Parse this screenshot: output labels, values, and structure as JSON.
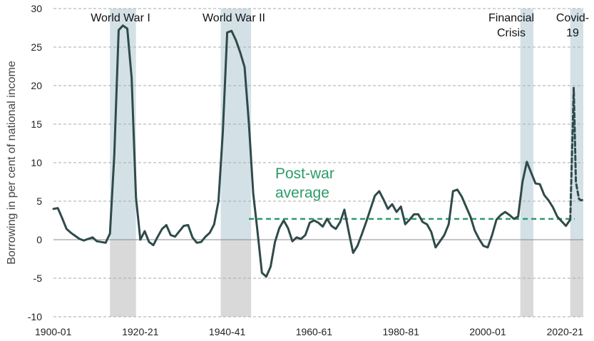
{
  "chart_data": {
    "type": "line",
    "ylabel": "Borrowing in per cent of national income",
    "ylim": [
      -10,
      30
    ],
    "yticks": [
      -10,
      -5,
      0,
      5,
      10,
      15,
      20,
      25,
      30
    ],
    "ytick_labels": [
      "-10",
      "-5",
      "0",
      "5",
      "10",
      "15",
      "20",
      "25",
      "30"
    ],
    "xlim": [
      1900,
      2022
    ],
    "xticks": [
      1900,
      1920,
      1940,
      1960,
      1980,
      2000,
      2020
    ],
    "xtick_labels": [
      "1900-01",
      "1920-21",
      "1940-41",
      "1960-61",
      "1980-81",
      "2000-01",
      "2020-21"
    ],
    "grid": true,
    "colors": {
      "line": "#2f4a49",
      "average": "#2e9a6a",
      "shade_positive": "#d3e1e7",
      "shade_negative": "#d9d9d9",
      "grid": "#aaaaaa"
    },
    "shaded_periods": [
      {
        "label_lines": [
          "World War I"
        ],
        "start": 1913,
        "end": 1919
      },
      {
        "label_lines": [
          "World War II"
        ],
        "start": 1938.5,
        "end": 1945.5
      },
      {
        "label_lines": [
          "Financial",
          "Crisis"
        ],
        "start": 2007.5,
        "end": 2010.5
      },
      {
        "label_lines": [
          "Covid-",
          "19"
        ],
        "start": 2019,
        "end": 2022
      }
    ],
    "average": {
      "label_lines": [
        "Post-war",
        "average"
      ],
      "value": 2.7,
      "start": 1945,
      "end": 2020
    },
    "series": [
      {
        "style": "solid",
        "x": [
          1900,
          1901,
          1902,
          1903,
          1904,
          1905,
          1906,
          1907,
          1908,
          1909,
          1910,
          1911,
          1912,
          1913,
          1914,
          1915,
          1916,
          1917,
          1918,
          1919,
          1920,
          1921,
          1922,
          1923,
          1924,
          1925,
          1926,
          1927,
          1928,
          1929,
          1930,
          1931,
          1932,
          1933,
          1934,
          1935,
          1936,
          1937,
          1938,
          1939,
          1940,
          1941,
          1942,
          1943,
          1944,
          1945,
          1946,
          1947,
          1948,
          1949,
          1950,
          1951,
          1952,
          1953,
          1954,
          1955,
          1956,
          1957,
          1958,
          1959,
          1960,
          1961,
          1962,
          1963,
          1964,
          1965,
          1966,
          1967,
          1968,
          1969,
          1970,
          1971,
          1972,
          1973,
          1974,
          1975,
          1976,
          1977,
          1978,
          1979,
          1980,
          1981,
          1982,
          1983,
          1984,
          1985,
          1986,
          1987,
          1988,
          1989,
          1990,
          1991,
          1992,
          1993,
          1994,
          1995,
          1996,
          1997,
          1998,
          1999,
          2000,
          2001,
          2002,
          2003,
          2004,
          2005,
          2006,
          2007,
          2008,
          2009,
          2010,
          2011,
          2012,
          2013,
          2014,
          2015,
          2016,
          2017,
          2018,
          2019
        ],
        "y": [
          4.0,
          4.1,
          2.8,
          1.4,
          0.9,
          0.5,
          0.1,
          -0.1,
          0.1,
          0.3,
          -0.2,
          -0.3,
          -0.4,
          0.8,
          11.0,
          27.2,
          27.8,
          27.4,
          21.0,
          5.5,
          0.0,
          1.1,
          -0.3,
          -0.7,
          0.4,
          1.4,
          1.9,
          0.6,
          0.4,
          1.1,
          1.8,
          1.9,
          0.3,
          -0.4,
          -0.3,
          0.4,
          0.9,
          2.0,
          5.0,
          14.0,
          26.9,
          27.1,
          25.9,
          24.3,
          22.4,
          15.0,
          6.0,
          1.0,
          -4.3,
          -4.8,
          -3.5,
          -0.3,
          1.5,
          2.5,
          1.5,
          -0.2,
          0.3,
          0.1,
          0.6,
          2.2,
          2.5,
          2.2,
          1.7,
          2.7,
          1.8,
          1.4,
          2.3,
          3.9,
          1.0,
          -1.7,
          -0.8,
          0.7,
          2.3,
          4.0,
          5.7,
          6.3,
          5.2,
          4.0,
          4.6,
          3.6,
          4.3,
          2.0,
          2.6,
          3.3,
          3.3,
          2.3,
          2.0,
          1.0,
          -1.0,
          -0.2,
          0.6,
          2.0,
          6.3,
          6.5,
          5.6,
          4.3,
          3.0,
          1.2,
          0.1,
          -0.8,
          -1.0,
          0.6,
          2.6,
          3.2,
          3.6,
          3.2,
          2.7,
          3.0,
          7.5,
          10.1,
          8.7,
          7.3,
          7.2,
          5.8,
          5.1,
          4.2,
          3.0,
          2.4,
          1.8,
          2.6
        ]
      },
      {
        "style": "dashed",
        "x": [
          2019,
          2019.8,
          2020.3,
          2021,
          2021.5,
          2022
        ],
        "y": [
          2.6,
          19.7,
          7.5,
          5.3,
          5.1,
          5.2
        ]
      }
    ]
  }
}
